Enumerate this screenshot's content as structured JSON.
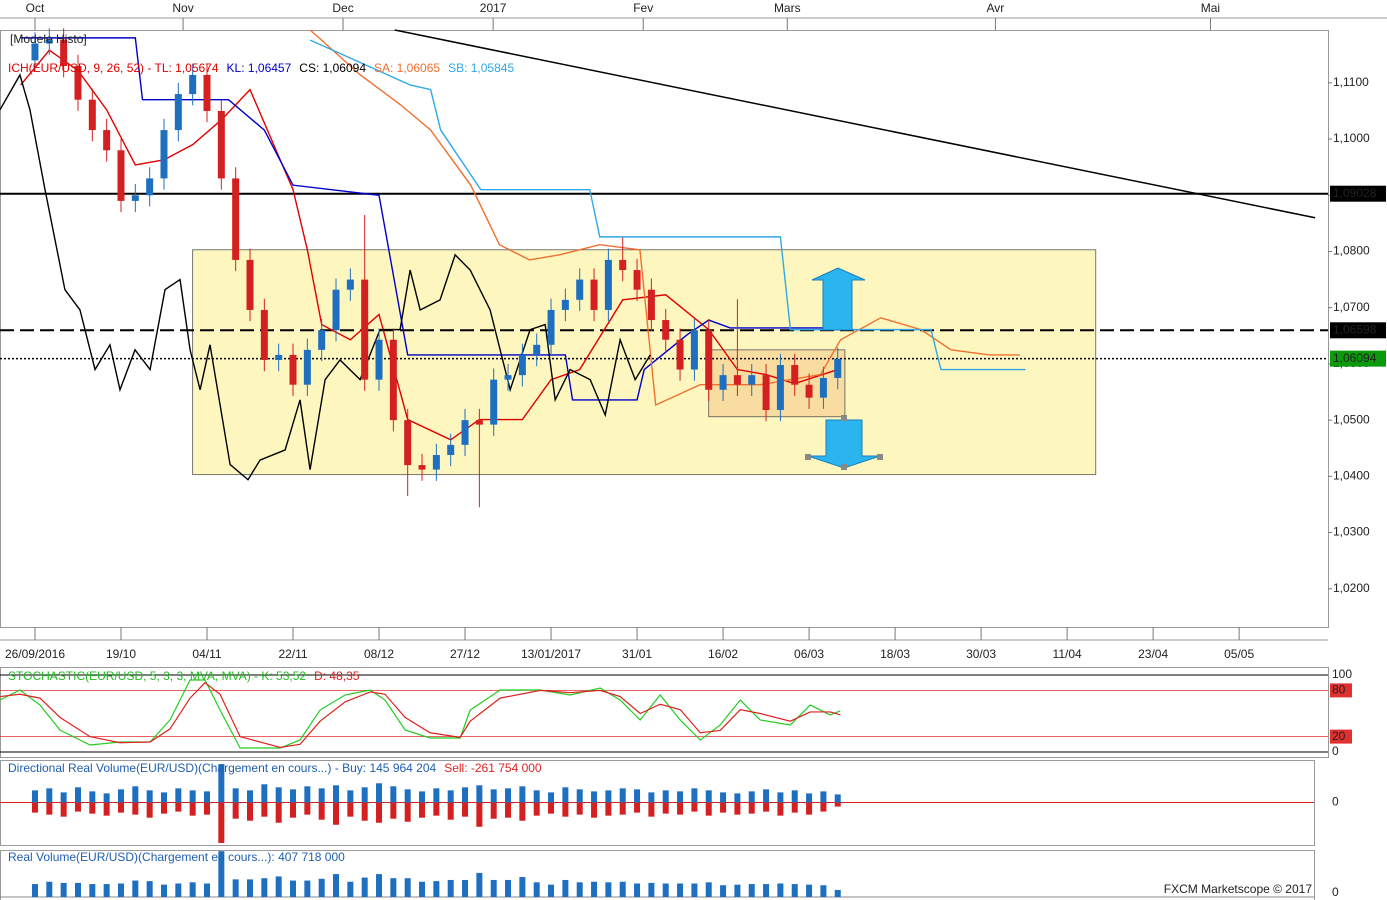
{
  "chart_data": [
    {
      "type": "candlestick",
      "overlay_label": "[Modele Histo]",
      "legend": [
        {
          "text": "ICH(EUR/USD, 9, 26, 52) -  TL: 1,05674",
          "color": "#e00000"
        },
        {
          "text": "KL: 1,06457",
          "color": "#0000cc"
        },
        {
          "text": "CS: 1,06094",
          "color": "#000000"
        },
        {
          "text": "SA: 1,06065",
          "color": "#f07030"
        },
        {
          "text": "SB: 1,05845",
          "color": "#30a8e8"
        }
      ],
      "up_color": "#1f6fc0",
      "down_color": "#d42020",
      "open": [
        1.114,
        1.117,
        1.1177,
        1.113,
        1.107,
        1.1016,
        1.098,
        1.089,
        1.09,
        1.093,
        1.1016,
        1.108,
        1.1114,
        1.105,
        1.093,
        1.0785,
        1.0696,
        1.0607,
        1.0616,
        1.0563,
        1.0625,
        1.066,
        1.0732,
        1.075,
        1.0572,
        1.0643,
        1.05,
        1.042,
        1.0412,
        1.0438,
        1.0456,
        1.05,
        1.0492,
        1.0572,
        1.058,
        1.0616,
        1.0634,
        1.0696,
        1.0714,
        1.075,
        1.0696,
        1.0785,
        1.0767,
        1.0732,
        1.0678,
        1.0643,
        1.059,
        1.066,
        1.0554,
        1.058,
        1.0563,
        1.058,
        1.0518,
        1.0598,
        1.0563,
        1.054,
        1.0575
      ],
      "high": [
        1.119,
        1.1197,
        1.1197,
        1.115,
        1.109,
        1.1036,
        1.1,
        1.092,
        1.095,
        1.1036,
        1.11,
        1.1134,
        1.1134,
        1.107,
        1.095,
        1.0805,
        1.0716,
        1.0636,
        1.0636,
        1.0645,
        1.068,
        1.0752,
        1.077,
        1.0865,
        1.0663,
        1.0663,
        1.052,
        1.044,
        1.0458,
        1.0476,
        1.052,
        1.052,
        1.0592,
        1.06,
        1.0636,
        1.0654,
        1.0716,
        1.0734,
        1.077,
        1.077,
        1.0805,
        1.0825,
        1.0787,
        1.0752,
        1.0698,
        1.0663,
        1.068,
        1.068,
        1.06,
        1.0715,
        1.06,
        1.06,
        1.0618,
        1.0618,
        1.0583,
        1.0595,
        1.0629
      ],
      "low": [
        1.112,
        1.115,
        1.111,
        1.105,
        1.0996,
        1.096,
        1.087,
        1.087,
        1.088,
        1.091,
        1.0996,
        1.106,
        1.103,
        1.091,
        1.0765,
        1.0676,
        1.0587,
        1.0587,
        1.0543,
        1.0543,
        1.0605,
        1.064,
        1.0712,
        1.0552,
        1.0552,
        1.048,
        1.0365,
        1.0392,
        1.0392,
        1.0418,
        1.0436,
        1.0345,
        1.0472,
        1.0552,
        1.056,
        1.0596,
        1.0614,
        1.0676,
        1.0694,
        1.0676,
        1.0676,
        1.0747,
        1.0712,
        1.0658,
        1.0623,
        1.057,
        1.057,
        1.0534,
        1.0534,
        1.0543,
        1.0543,
        1.0498,
        1.0498,
        1.0543,
        1.052,
        1.052,
        1.0555
      ],
      "close": [
        1.117,
        1.1177,
        1.113,
        1.107,
        1.1016,
        1.098,
        1.089,
        1.09,
        1.093,
        1.1016,
        1.108,
        1.1114,
        1.105,
        1.093,
        1.0785,
        1.0696,
        1.0607,
        1.0616,
        1.0563,
        1.0625,
        1.066,
        1.0732,
        1.075,
        1.0572,
        1.0643,
        1.05,
        1.042,
        1.0412,
        1.0438,
        1.0456,
        1.05,
        1.0492,
        1.0572,
        1.058,
        1.0616,
        1.0634,
        1.0696,
        1.0714,
        1.075,
        1.0696,
        1.0785,
        1.0767,
        1.0732,
        1.0678,
        1.0643,
        1.059,
        1.066,
        1.0554,
        1.058,
        1.0563,
        1.058,
        1.0518,
        1.0598,
        1.0563,
        1.054,
        1.0575,
        1.0609
      ],
      "lines": [
        {
          "color": "#e00000",
          "x": [
            -1,
            1,
            3,
            5,
            7,
            9,
            11,
            13,
            15,
            18,
            19,
            20,
            22,
            24,
            26,
            29,
            31,
            34,
            36,
            38,
            41,
            44,
            47,
            49,
            51,
            53,
            56
          ],
          "values": [
            1.1096,
            1.1158,
            1.1122,
            1.1052,
            1.0954,
            1.0963,
            1.099,
            1.1034,
            1.1088,
            1.091,
            1.0803,
            1.067,
            1.0643,
            1.0688,
            1.0501,
            1.0465,
            1.0501,
            1.0501,
            1.0572,
            1.059,
            1.0714,
            1.0723,
            1.0661,
            1.059,
            1.0581,
            1.0565,
            1.059
          ]
        },
        {
          "color": "#0000cc",
          "x": [
            -1,
            7,
            7.5,
            13.5,
            16,
            18,
            24,
            26,
            37,
            37.5,
            42,
            42.5,
            45.5,
            47,
            48.5,
            56
          ],
          "values": [
            1.118,
            1.118,
            1.107,
            1.107,
            1.1016,
            1.0918,
            1.09,
            1.0616,
            1.0616,
            1.0536,
            1.0536,
            1.059,
            1.0652,
            1.0678,
            1.0664,
            1.0664
          ]
        },
        {
          "color": "#f07030",
          "x": [
            19.2,
            22.7,
            25.5,
            27.6,
            30.4,
            32.4,
            34.5,
            36.6,
            39.4,
            42.2,
            43.3,
            46.4,
            50.6,
            54.8,
            56.2,
            59.0,
            61.8,
            63.9,
            66.6,
            68.7
          ],
          "values": [
            1.1194,
            1.1114,
            1.1061,
            1.1016,
            1.0918,
            1.0812,
            1.0785,
            1.0794,
            1.0812,
            1.0803,
            1.0527,
            1.0563,
            1.0563,
            1.0581,
            1.0643,
            1.0682,
            1.0661,
            1.0625,
            1.0616,
            1.0616
          ]
        },
        {
          "color": "#30a8e8",
          "x": [
            19.2,
            26.2,
            27.6,
            28.3,
            31.1,
            38.7,
            39.4,
            52.0,
            52.7,
            55.5,
            62.5,
            63.2,
            69.1
          ],
          "values": [
            1.1176,
            1.1096,
            1.1088,
            1.1016,
            1.091,
            1.091,
            1.0826,
            1.0826,
            1.0661,
            1.0661,
            1.0661,
            1.059,
            1.059
          ]
        },
        {
          "color": "#000000",
          "x": [
            -2.44,
            -1.05,
            -0.35,
            0.7,
            2.09,
            3.14,
            4.19,
            5.23,
            5.93,
            6.98,
            8.03,
            9.07,
            10.12,
            10.82,
            11.52,
            12.21,
            13.61,
            14.86,
            15.7,
            17.45,
            18.49,
            19.19,
            20.24,
            21.28,
            22.68,
            24.07,
            25.47,
            26.17,
            26.87,
            28.26,
            29.31,
            30.36,
            31.75,
            33.15,
            34.54,
            35.59,
            36.29,
            37.33,
            38.73,
            39.78,
            40.82,
            41.87,
            42.92
          ],
          "values": [
            1.1052,
            1.1114,
            1.1052,
            1.091,
            1.0732,
            1.0696,
            1.059,
            1.0634,
            1.0554,
            1.0625,
            1.059,
            1.0732,
            1.075,
            1.0625,
            1.0554,
            1.0634,
            1.0421,
            1.0394,
            1.0429,
            1.0447,
            1.0536,
            1.0412,
            1.0572,
            1.0607,
            1.0572,
            1.0661,
            1.0661,
            1.0767,
            1.0696,
            1.0714,
            1.0794,
            1.0767,
            1.0696,
            1.0554,
            1.0661,
            1.067,
            1.0536,
            1.059,
            1.0572,
            1.0509,
            1.0643,
            1.0572,
            1.0616
          ]
        }
      ],
      "trendline": {
        "color": "#000000",
        "x": [
          25.1,
          89.3
        ],
        "y": [
          1.1194,
          1.086
        ]
      },
      "zones": [
        {
          "fill": "#fdf7bf",
          "x": [
            11.0,
            74.0
          ],
          "y": [
            1.0403,
            1.0803
          ]
        },
        {
          "fill": "#f7c98a",
          "x": [
            47.0,
            56.5
          ],
          "y": [
            1.0506,
            1.0625
          ]
        }
      ],
      "levels": [
        {
          "value": 1.09028,
          "label": "1,09028",
          "style": "solid",
          "label_bg": "#000000",
          "label_color": "#ffffff"
        },
        {
          "value": 1.06598,
          "label": "1,06598",
          "style": "dashed",
          "label_bg": "#000000",
          "label_color": "#ffffff"
        },
        {
          "value": 1.06094,
          "label": "1,06094",
          "style": "dotted",
          "label_bg": "#0b9a0b",
          "label_color": "#ffffff"
        }
      ],
      "xlim": [
        -2.44,
        90.2
      ],
      "xticks": [
        {
          "value": 0,
          "label": "26/09/2016"
        },
        {
          "value": 6,
          "label": "19/10"
        },
        {
          "value": 12,
          "label": "04/11"
        },
        {
          "value": 18,
          "label": "22/11"
        },
        {
          "value": 24,
          "label": "08/12"
        },
        {
          "value": 30,
          "label": "27/12"
        },
        {
          "value": 36,
          "label": "13/01/2017"
        },
        {
          "value": 42,
          "label": "31/01"
        },
        {
          "value": 48,
          "label": "16/02"
        },
        {
          "value": 54,
          "label": "06/03"
        },
        {
          "value": 60,
          "label": "18/03"
        },
        {
          "value": 66,
          "label": "30/03"
        },
        {
          "value": 72,
          "label": "11/04"
        },
        {
          "value": 78,
          "label": "23/04"
        },
        {
          "value": 84,
          "label": "05/05"
        }
      ],
      "top_ticks": [
        {
          "value": 0,
          "label": "Oct"
        },
        {
          "value": 10.33,
          "label": "Nov"
        },
        {
          "value": 21.49,
          "label": "Dec"
        },
        {
          "value": 31.96,
          "label": "2017"
        },
        {
          "value": 42.43,
          "label": "Fev"
        },
        {
          "value": 52.48,
          "label": "Mars"
        },
        {
          "value": 67.0,
          "label": "Avr"
        },
        {
          "value": 82.0,
          "label": "Mai"
        }
      ],
      "ylim": [
        1.0132,
        1.1194
      ],
      "yticks": [
        {
          "value": 1.02,
          "label": "1,0200"
        },
        {
          "value": 1.03,
          "label": "1,0300"
        },
        {
          "value": 1.04,
          "label": "1,0400"
        },
        {
          "value": 1.05,
          "label": "1,0500"
        },
        {
          "value": 1.06,
          "label": "1,0600"
        },
        {
          "value": 1.07,
          "label": "1,0700"
        },
        {
          "value": 1.08,
          "label": "1,0800"
        },
        {
          "value": 1.09,
          "label": "1,0900"
        },
        {
          "value": 1.1,
          "label": "1,1000"
        },
        {
          "value": 1.11,
          "label": "1,1100"
        }
      ]
    },
    {
      "type": "line",
      "legend": [
        {
          "text": "STOCHASTIC(EUR/USD, 5, 3, 3, MVA, MVA) -  K: 53,52",
          "color": "#22bb22"
        },
        {
          "text": "D: 48,35",
          "color": "#dd2222"
        }
      ],
      "xlim": [
        -2.44,
        90.2
      ],
      "x": [
        -2.44,
        -1.05,
        0.35,
        1.74,
        3.84,
        5.93,
        8.03,
        9.42,
        10.82,
        11.86,
        12.91,
        14.31,
        17.1,
        18.49,
        19.89,
        21.63,
        23.38,
        24.42,
        25.82,
        27.56,
        29.66,
        30.36,
        32.45,
        35.25,
        37.34,
        39.43,
        40.82,
        42.22,
        43.61,
        45.01,
        46.41,
        47.8,
        49.2,
        50.59,
        52.69,
        54.08,
        55.48,
        56.18
      ],
      "series": [
        {
          "color": "#22cc22",
          "values": [
            67.5,
            80.5,
            61.0,
            28.6,
            9.1,
            13.0,
            13.0,
            41.6,
            93.5,
            93.5,
            54.5,
            5.2,
            5.2,
            15.6,
            54.5,
            74.0,
            80.5,
            67.5,
            28.6,
            18.2,
            18.2,
            54.5,
            80.5,
            80.5,
            74.0,
            83.1,
            67.5,
            41.6,
            74.0,
            41.6,
            15.6,
            35.1,
            67.5,
            41.6,
            35.1,
            61.0,
            48.1,
            53.52
          ]
        },
        {
          "color": "#dd2222",
          "values": [
            72,
            75,
            70,
            45,
            20,
            12,
            13,
            30,
            70,
            90,
            75,
            20,
            6,
            10,
            40,
            65,
            78,
            75,
            45,
            25,
            19,
            40,
            70,
            80,
            77,
            80,
            72,
            50,
            62,
            55,
            25,
            28,
            55,
            50,
            40,
            52,
            52,
            48.35
          ]
        }
      ],
      "levels": [
        80,
        20
      ],
      "level_color": "#e03030",
      "ylim": [
        0,
        100
      ],
      "yticks": [
        100,
        80,
        20,
        0
      ]
    },
    {
      "type": "bar",
      "legend": [
        {
          "text": "Directional Real Volume(EUR/USD)(Chargement en cours...) -  Buy: 145 964 204",
          "color": "#1f5fb0"
        },
        {
          "text": "Sell: -261 754 000",
          "color": "#dd2222"
        }
      ],
      "xlim": [
        -2.44,
        90.2
      ],
      "series": [
        {
          "color": "#1f6fc0",
          "values": [
            12,
            14,
            10,
            15,
            11,
            9,
            13,
            16,
            12,
            10,
            14,
            12,
            11,
            38,
            14,
            12,
            18,
            15,
            13,
            16,
            14,
            17,
            12,
            15,
            19,
            16,
            13,
            11,
            14,
            12,
            15,
            17,
            13,
            14,
            16,
            12,
            10,
            15,
            13,
            11,
            12,
            14,
            13,
            10,
            12,
            11,
            14,
            12,
            10,
            9,
            11,
            13,
            10,
            12,
            9,
            11,
            8
          ]
        },
        {
          "color": "#d42020",
          "values": [
            -10,
            -12,
            -14,
            -9,
            -11,
            -13,
            -10,
            -12,
            -15,
            -11,
            -9,
            -13,
            -12,
            -40,
            -16,
            -18,
            -14,
            -20,
            -15,
            -12,
            -17,
            -22,
            -14,
            -18,
            -20,
            -16,
            -19,
            -15,
            -13,
            -17,
            -14,
            -24,
            -16,
            -15,
            -18,
            -13,
            -11,
            -14,
            -12,
            -15,
            -13,
            -12,
            -10,
            -14,
            -11,
            -12,
            -9,
            -13,
            -10,
            -12,
            -11,
            -9,
            -13,
            -10,
            -12,
            -9,
            -4
          ]
        }
      ],
      "zero_color": "#d42020",
      "ylim": [
        -42,
        42
      ],
      "yticks": [
        0
      ]
    },
    {
      "type": "bar",
      "legend": [
        {
          "text": "Real Volume(EUR/USD)(Chargement en cours...): 407 718 000",
          "color": "#1f5fb0"
        }
      ],
      "xlim": [
        -2.44,
        90.2
      ],
      "series": [
        {
          "color": "#1f6fc0",
          "values": [
            22,
            26,
            24,
            24,
            22,
            22,
            23,
            28,
            27,
            21,
            23,
            25,
            23,
            78,
            30,
            30,
            32,
            35,
            28,
            28,
            31,
            39,
            26,
            33,
            39,
            32,
            32,
            26,
            27,
            29,
            29,
            41,
            29,
            29,
            34,
            25,
            21,
            29,
            25,
            26,
            25,
            26,
            23,
            24,
            23,
            23,
            23,
            25,
            20,
            21,
            22,
            22,
            23,
            22,
            21,
            20,
            12
          ]
        }
      ],
      "ylim": [
        0,
        80
      ],
      "yticks": [
        0
      ]
    }
  ],
  "footer": "FXCM Marketscope © 2017"
}
